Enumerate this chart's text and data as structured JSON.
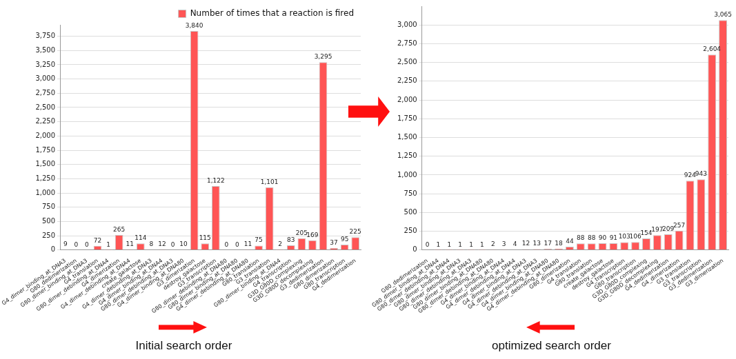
{
  "chart_data": [
    {
      "type": "bar",
      "categories": [
        "G4_dimer_binding_at_DNA3",
        "G80_dedimerization",
        "G80_dimer_binding_at_DNA3",
        "G4_translation",
        "G80_dimer_debinding_at_DNA4",
        "G4_dimerization",
        "G4_dimer_debinding_at_DNA4",
        "create_galactose",
        "G4_dimer_debinding_at_DNA3",
        "G4_dimer_binding_at_DNA4",
        "G80_dimer_debinding_at_DNA3",
        "G4_dimer_binding_at_DNA80",
        "G3_dimerization",
        "destroy_galactose",
        "G3_transcription",
        "G80_dimer_debinding_at_DNA80",
        "G80_dimer_binding_at_DNA80",
        "G4_dimer_debinding_at_DNA80",
        "G80_translation",
        "G3_translation",
        "G80_dimer_binding_at_DNA4",
        "G4_transcription",
        "G3D_G80D_complexing",
        "G3D_G80D_decomplexing",
        "G3_dedimerization",
        "G80_dimerization",
        "G80_transcription",
        "G4_dedimerization"
      ],
      "series": [
        {
          "name": "Number of times that a reaction is fired",
          "color": "#ff5555",
          "values": [
            9,
            0,
            0,
            72,
            1,
            265,
            11,
            114,
            8,
            12,
            0,
            10,
            3840,
            115,
            1122,
            0,
            0,
            11,
            75,
            1101,
            2,
            83,
            205,
            169,
            3295,
            37,
            95,
            225
          ],
          "value_labels": [
            "9",
            "0",
            "0",
            "72",
            "1",
            "265",
            "11",
            "114",
            "8",
            "12",
            "0",
            "10",
            "3,840",
            "115",
            "1,122",
            "0",
            "0",
            "11",
            "75",
            "1,101",
            "2",
            "83",
            "205",
            "169",
            "3,295",
            "37",
            "95",
            "225"
          ]
        }
      ],
      "ylim": [
        0,
        3950
      ],
      "yticks": [
        0,
        250,
        500,
        750,
        {
          "value": 1000,
          "label": "1,000"
        },
        {
          "value": 1250,
          "label": "1,250"
        },
        {
          "value": 1500,
          "label": "1,500"
        },
        {
          "value": 1750,
          "label": "1,750"
        },
        {
          "value": 2000,
          "label": "2,000"
        },
        {
          "value": 2250,
          "label": "2,250"
        },
        {
          "value": 2500,
          "label": "2,500"
        },
        {
          "value": 2750,
          "label": "2,750"
        },
        {
          "value": 3000,
          "label": "3,000"
        },
        {
          "value": 3250,
          "label": "3,250"
        },
        {
          "value": 3500,
          "label": "3,500"
        },
        {
          "value": 3750,
          "label": "3,750"
        }
      ],
      "grid": "y",
      "legend": "top right",
      "annotations": [
        "Initial search order"
      ]
    },
    {
      "type": "bar",
      "categories": [
        "G80_dedimerization",
        "G80_dimer_binding_at_DNA4",
        "G80_dimer_debinding_at_DNA4",
        "G80_dimer_binding_at_DNA3",
        "G80_dimer_debinding_at_DNA3",
        "G80_dimer_binding_at_DNA80",
        "G80_dimer_debinding_at_DNA80",
        "G4_dimer_binding_at_DNA4",
        "G4_dimer_debinding_at_DNA4",
        "G4_dimer_binding_at_DNA3",
        "G4_dimer_debinding_at_DNA3",
        "G4_dimer_binding_at_DNA80",
        "G4_dimer_debinding_at_DNA80",
        "G80_dimerization",
        "G4_translation",
        "G80_translation",
        "create_galactose",
        "destroy_galactose",
        "G4_transcription",
        "G80_transcription",
        "G3D_G80D_complexing",
        "G3D_G80D_decomplexing",
        "G4_dedimerization",
        "G4_dimerization",
        "G3_translation",
        "G3_transcription",
        "G3_dedimerization",
        "G3_dimerization"
      ],
      "series": [
        {
          "color": "#ff5555",
          "values": [
            0,
            1,
            1,
            1,
            1,
            1,
            2,
            3,
            4,
            12,
            13,
            17,
            18,
            44,
            88,
            88,
            90,
            91,
            103,
            106,
            154,
            197,
            209,
            257,
            924,
            943,
            2604,
            3065
          ],
          "value_labels": [
            "0",
            "1",
            "1",
            "1",
            "1",
            "1",
            "2",
            "3",
            "4",
            "12",
            "13",
            "17",
            "18",
            "44",
            "88",
            "88",
            "90",
            "91",
            "103",
            "106",
            "154",
            "197",
            "209",
            "257",
            "924",
            "943",
            "2,604",
            "3,065"
          ]
        }
      ],
      "ylim": [
        0,
        3250
      ],
      "yticks": [
        0,
        250,
        500,
        750,
        {
          "value": 1000,
          "label": "1,000"
        },
        {
          "value": 1250,
          "label": "1,250"
        },
        {
          "value": 1500,
          "label": "1,500"
        },
        {
          "value": 1750,
          "label": "1,750"
        },
        {
          "value": 2000,
          "label": "2,000"
        },
        {
          "value": 2250,
          "label": "2,250"
        },
        {
          "value": 2500,
          "label": "2,500"
        },
        {
          "value": 2750,
          "label": "2,750"
        },
        {
          "value": 3000,
          "label": "3,000"
        }
      ],
      "grid": "y",
      "annotations": [
        "optimized search order"
      ]
    }
  ]
}
